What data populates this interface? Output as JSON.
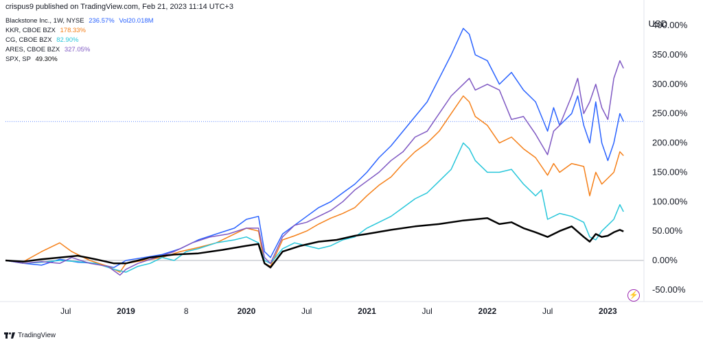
{
  "header": {
    "published": "crispus9 published on TradingView.com, Feb 21, 2023 11:14 UTC+3"
  },
  "legend": [
    {
      "label": "Blackstone Inc., 1W, NYSE",
      "value": "236.57%",
      "extra": "Vol20.018M",
      "color": "#2962ff"
    },
    {
      "label": "KKR, CBOE BZX",
      "value": "178.33%",
      "color": "#f57f17"
    },
    {
      "label": "CG, CBOE BZX",
      "value": "82.90%",
      "color": "#26c6da"
    },
    {
      "label": "ARES, CBOE BZX",
      "value": "327.05%",
      "color": "#7e57c2"
    },
    {
      "label": "SPX, SP",
      "value": "49.30%",
      "color": "#000000"
    }
  ],
  "footer": {
    "brand": "TradingView"
  },
  "chart_data": {
    "type": "line",
    "currency": "USD",
    "y_ticks": [
      "400.00%",
      "350.00%",
      "300.00%",
      "250.00%",
      "200.00%",
      "150.00%",
      "100.00%",
      "50.00%",
      "0.00%",
      "-50.00%"
    ],
    "y_tick_values": [
      400,
      350,
      300,
      250,
      200,
      150,
      100,
      50,
      0,
      -50
    ],
    "ylim": [
      -70,
      420
    ],
    "x_ticks": [
      {
        "label": "Jul",
        "t": 2018.5,
        "bold": false
      },
      {
        "label": "2019",
        "t": 2019.0,
        "bold": true
      },
      {
        "label": "8",
        "t": 2019.5,
        "bold": false
      },
      {
        "label": "2020",
        "t": 2020.0,
        "bold": true
      },
      {
        "label": "Jul",
        "t": 2020.5,
        "bold": false
      },
      {
        "label": "2021",
        "t": 2021.0,
        "bold": true
      },
      {
        "label": "Jul",
        "t": 2021.5,
        "bold": false
      },
      {
        "label": "2022",
        "t": 2022.0,
        "bold": true
      },
      {
        "label": "Jul",
        "t": 2022.5,
        "bold": false
      },
      {
        "label": "2023",
        "t": 2023.0,
        "bold": true
      }
    ],
    "xlim": [
      2018.0,
      2023.3
    ],
    "reference_line": {
      "value": 236.57,
      "color": "#2962ff"
    },
    "series": [
      {
        "name": "Blackstone Inc.",
        "color": "#2962ff",
        "width": 1.5,
        "points": [
          [
            2018.0,
            0
          ],
          [
            2018.15,
            -5
          ],
          [
            2018.3,
            -8
          ],
          [
            2018.45,
            2
          ],
          [
            2018.6,
            -3
          ],
          [
            2018.75,
            -5
          ],
          [
            2018.9,
            -12
          ],
          [
            2019.0,
            0
          ],
          [
            2019.15,
            5
          ],
          [
            2019.3,
            10
          ],
          [
            2019.45,
            20
          ],
          [
            2019.6,
            35
          ],
          [
            2019.75,
            45
          ],
          [
            2019.9,
            55
          ],
          [
            2020.0,
            70
          ],
          [
            2020.1,
            75
          ],
          [
            2020.15,
            15
          ],
          [
            2020.2,
            5
          ],
          [
            2020.3,
            45
          ],
          [
            2020.4,
            60
          ],
          [
            2020.5,
            75
          ],
          [
            2020.6,
            90
          ],
          [
            2020.7,
            100
          ],
          [
            2020.8,
            115
          ],
          [
            2020.9,
            130
          ],
          [
            2021.0,
            150
          ],
          [
            2021.1,
            175
          ],
          [
            2021.2,
            195
          ],
          [
            2021.3,
            220
          ],
          [
            2021.4,
            245
          ],
          [
            2021.5,
            270
          ],
          [
            2021.6,
            310
          ],
          [
            2021.7,
            350
          ],
          [
            2021.8,
            395
          ],
          [
            2021.85,
            385
          ],
          [
            2021.9,
            350
          ],
          [
            2022.0,
            340
          ],
          [
            2022.1,
            300
          ],
          [
            2022.2,
            320
          ],
          [
            2022.3,
            290
          ],
          [
            2022.4,
            270
          ],
          [
            2022.5,
            220
          ],
          [
            2022.55,
            260
          ],
          [
            2022.6,
            230
          ],
          [
            2022.7,
            250
          ],
          [
            2022.75,
            280
          ],
          [
            2022.8,
            230
          ],
          [
            2022.85,
            200
          ],
          [
            2022.9,
            270
          ],
          [
            2022.95,
            200
          ],
          [
            2023.0,
            170
          ],
          [
            2023.05,
            200
          ],
          [
            2023.1,
            250
          ],
          [
            2023.13,
            236.57
          ]
        ]
      },
      {
        "name": "KKR",
        "color": "#f57f17",
        "width": 1.5,
        "points": [
          [
            2018.0,
            0
          ],
          [
            2018.15,
            -2
          ],
          [
            2018.3,
            15
          ],
          [
            2018.45,
            30
          ],
          [
            2018.55,
            15
          ],
          [
            2018.7,
            0
          ],
          [
            2018.85,
            -10
          ],
          [
            2018.95,
            -20
          ],
          [
            2019.0,
            -5
          ],
          [
            2019.15,
            0
          ],
          [
            2019.3,
            5
          ],
          [
            2019.45,
            15
          ],
          [
            2019.6,
            22
          ],
          [
            2019.75,
            30
          ],
          [
            2019.9,
            45
          ],
          [
            2020.0,
            55
          ],
          [
            2020.1,
            50
          ],
          [
            2020.15,
            -5
          ],
          [
            2020.2,
            -10
          ],
          [
            2020.3,
            35
          ],
          [
            2020.4,
            42
          ],
          [
            2020.5,
            50
          ],
          [
            2020.6,
            62
          ],
          [
            2020.7,
            72
          ],
          [
            2020.8,
            80
          ],
          [
            2020.9,
            90
          ],
          [
            2021.0,
            110
          ],
          [
            2021.1,
            128
          ],
          [
            2021.2,
            142
          ],
          [
            2021.3,
            165
          ],
          [
            2021.4,
            185
          ],
          [
            2021.5,
            200
          ],
          [
            2021.6,
            220
          ],
          [
            2021.7,
            250
          ],
          [
            2021.8,
            280
          ],
          [
            2021.85,
            270
          ],
          [
            2021.9,
            245
          ],
          [
            2022.0,
            230
          ],
          [
            2022.1,
            200
          ],
          [
            2022.2,
            210
          ],
          [
            2022.3,
            190
          ],
          [
            2022.4,
            175
          ],
          [
            2022.5,
            145
          ],
          [
            2022.55,
            165
          ],
          [
            2022.6,
            150
          ],
          [
            2022.7,
            165
          ],
          [
            2022.8,
            160
          ],
          [
            2022.85,
            110
          ],
          [
            2022.9,
            150
          ],
          [
            2022.95,
            130
          ],
          [
            2023.0,
            140
          ],
          [
            2023.05,
            150
          ],
          [
            2023.1,
            185
          ],
          [
            2023.13,
            178.33
          ]
        ]
      },
      {
        "name": "CG",
        "color": "#26c6da",
        "width": 1.5,
        "points": [
          [
            2018.0,
            0
          ],
          [
            2018.15,
            -5
          ],
          [
            2018.3,
            -3
          ],
          [
            2018.45,
            0
          ],
          [
            2018.6,
            -2
          ],
          [
            2018.75,
            -5
          ],
          [
            2018.9,
            -15
          ],
          [
            2019.0,
            -20
          ],
          [
            2019.1,
            -10
          ],
          [
            2019.2,
            -5
          ],
          [
            2019.3,
            5
          ],
          [
            2019.4,
            0
          ],
          [
            2019.5,
            15
          ],
          [
            2019.6,
            20
          ],
          [
            2019.75,
            30
          ],
          [
            2019.9,
            35
          ],
          [
            2020.0,
            40
          ],
          [
            2020.1,
            30
          ],
          [
            2020.15,
            0
          ],
          [
            2020.2,
            -5
          ],
          [
            2020.3,
            20
          ],
          [
            2020.4,
            30
          ],
          [
            2020.5,
            25
          ],
          [
            2020.6,
            20
          ],
          [
            2020.7,
            25
          ],
          [
            2020.8,
            35
          ],
          [
            2020.9,
            40
          ],
          [
            2021.0,
            55
          ],
          [
            2021.1,
            65
          ],
          [
            2021.2,
            75
          ],
          [
            2021.3,
            90
          ],
          [
            2021.4,
            105
          ],
          [
            2021.5,
            115
          ],
          [
            2021.6,
            135
          ],
          [
            2021.7,
            155
          ],
          [
            2021.8,
            200
          ],
          [
            2021.85,
            190
          ],
          [
            2021.9,
            170
          ],
          [
            2022.0,
            150
          ],
          [
            2022.1,
            150
          ],
          [
            2022.2,
            155
          ],
          [
            2022.3,
            130
          ],
          [
            2022.4,
            110
          ],
          [
            2022.45,
            120
          ],
          [
            2022.5,
            70
          ],
          [
            2022.6,
            80
          ],
          [
            2022.7,
            75
          ],
          [
            2022.8,
            65
          ],
          [
            2022.85,
            40
          ],
          [
            2022.9,
            35
          ],
          [
            2022.95,
            50
          ],
          [
            2023.0,
            60
          ],
          [
            2023.05,
            70
          ],
          [
            2023.1,
            95
          ],
          [
            2023.13,
            82.9
          ]
        ]
      },
      {
        "name": "ARES",
        "color": "#7e57c2",
        "width": 1.5,
        "points": [
          [
            2018.0,
            0
          ],
          [
            2018.15,
            -5
          ],
          [
            2018.3,
            -2
          ],
          [
            2018.45,
            -5
          ],
          [
            2018.55,
            5
          ],
          [
            2018.7,
            -5
          ],
          [
            2018.85,
            -10
          ],
          [
            2018.95,
            -25
          ],
          [
            2019.0,
            -15
          ],
          [
            2019.1,
            -5
          ],
          [
            2019.25,
            5
          ],
          [
            2019.4,
            15
          ],
          [
            2019.55,
            30
          ],
          [
            2019.7,
            40
          ],
          [
            2019.85,
            45
          ],
          [
            2020.0,
            55
          ],
          [
            2020.1,
            55
          ],
          [
            2020.15,
            5
          ],
          [
            2020.2,
            -5
          ],
          [
            2020.3,
            40
          ],
          [
            2020.4,
            60
          ],
          [
            2020.5,
            65
          ],
          [
            2020.6,
            75
          ],
          [
            2020.7,
            85
          ],
          [
            2020.8,
            100
          ],
          [
            2020.9,
            120
          ],
          [
            2021.0,
            135
          ],
          [
            2021.1,
            150
          ],
          [
            2021.2,
            170
          ],
          [
            2021.3,
            185
          ],
          [
            2021.4,
            210
          ],
          [
            2021.5,
            220
          ],
          [
            2021.6,
            250
          ],
          [
            2021.7,
            280
          ],
          [
            2021.8,
            300
          ],
          [
            2021.85,
            310
          ],
          [
            2021.9,
            290
          ],
          [
            2022.0,
            300
          ],
          [
            2022.1,
            290
          ],
          [
            2022.2,
            240
          ],
          [
            2022.3,
            245
          ],
          [
            2022.4,
            215
          ],
          [
            2022.5,
            180
          ],
          [
            2022.55,
            220
          ],
          [
            2022.6,
            230
          ],
          [
            2022.7,
            280
          ],
          [
            2022.75,
            310
          ],
          [
            2022.8,
            250
          ],
          [
            2022.85,
            270
          ],
          [
            2022.9,
            300
          ],
          [
            2022.95,
            260
          ],
          [
            2023.0,
            240
          ],
          [
            2023.05,
            310
          ],
          [
            2023.1,
            340
          ],
          [
            2023.13,
            327.05
          ]
        ]
      },
      {
        "name": "SPX",
        "color": "#000000",
        "width": 2.5,
        "points": [
          [
            2018.0,
            0
          ],
          [
            2018.15,
            -2
          ],
          [
            2018.3,
            2
          ],
          [
            2018.45,
            5
          ],
          [
            2018.6,
            8
          ],
          [
            2018.75,
            2
          ],
          [
            2018.9,
            -5
          ],
          [
            2019.0,
            -5
          ],
          [
            2019.2,
            5
          ],
          [
            2019.4,
            10
          ],
          [
            2019.6,
            12
          ],
          [
            2019.8,
            18
          ],
          [
            2020.0,
            25
          ],
          [
            2020.1,
            28
          ],
          [
            2020.15,
            -5
          ],
          [
            2020.2,
            -12
          ],
          [
            2020.3,
            15
          ],
          [
            2020.45,
            25
          ],
          [
            2020.6,
            32
          ],
          [
            2020.75,
            35
          ],
          [
            2020.9,
            42
          ],
          [
            2021.0,
            45
          ],
          [
            2021.2,
            52
          ],
          [
            2021.4,
            58
          ],
          [
            2021.6,
            62
          ],
          [
            2021.8,
            68
          ],
          [
            2022.0,
            72
          ],
          [
            2022.1,
            62
          ],
          [
            2022.2,
            65
          ],
          [
            2022.3,
            55
          ],
          [
            2022.4,
            48
          ],
          [
            2022.5,
            40
          ],
          [
            2022.6,
            50
          ],
          [
            2022.7,
            58
          ],
          [
            2022.8,
            40
          ],
          [
            2022.85,
            32
          ],
          [
            2022.9,
            45
          ],
          [
            2022.95,
            40
          ],
          [
            2023.0,
            42
          ],
          [
            2023.05,
            48
          ],
          [
            2023.1,
            52
          ],
          [
            2023.13,
            49.3
          ]
        ]
      }
    ]
  }
}
